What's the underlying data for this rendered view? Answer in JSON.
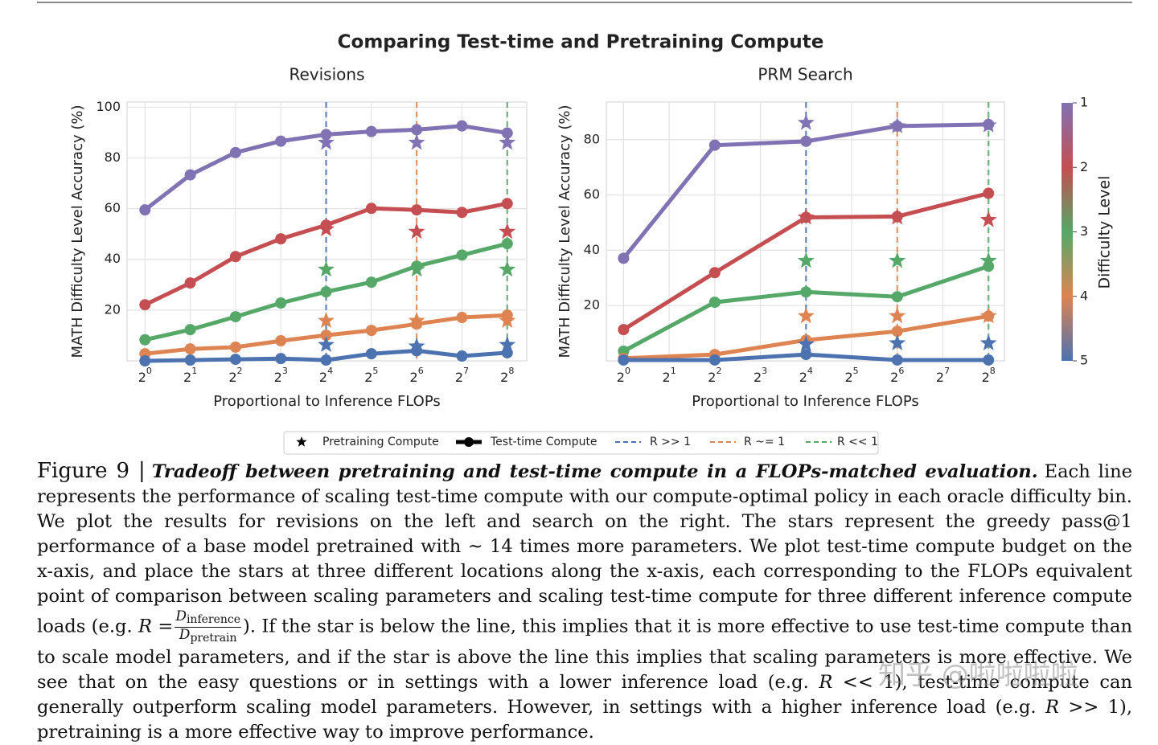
{
  "figure_title": "Comparing Test-time and Pretraining Compute",
  "chart_data": [
    {
      "type": "line",
      "title": "Revisions",
      "xlabel": "Proportional to Inference FLOPs",
      "ylabel": "MATH Difficulty Level Accuracy (%)",
      "xscale": "log2",
      "xlim": [
        0.76,
        345
      ],
      "ylim": [
        0,
        102
      ],
      "grid": true,
      "xticks": [
        {
          "value": 1,
          "label": "2^0"
        },
        {
          "value": 2,
          "label": "2^1"
        },
        {
          "value": 4,
          "label": "2^2"
        },
        {
          "value": 8,
          "label": "2^3"
        },
        {
          "value": 16,
          "label": "2^4"
        },
        {
          "value": 32,
          "label": "2^5"
        },
        {
          "value": 64,
          "label": "2^6"
        },
        {
          "value": 128,
          "label": "2^7"
        },
        {
          "value": 256,
          "label": "2^8"
        }
      ],
      "yticks": [
        20,
        40,
        60,
        80,
        100
      ],
      "x": [
        1,
        2,
        4,
        8,
        16,
        32,
        64,
        128,
        256
      ],
      "star_x": [
        16,
        64,
        256
      ],
      "vlines": [
        {
          "x": 16,
          "color": "#4c72b0"
        },
        {
          "x": 64,
          "color": "#dd8452"
        },
        {
          "x": 256,
          "color": "#55a868"
        }
      ],
      "series": [
        {
          "color": "#8172b3",
          "values": [
            59.5,
            73.3,
            82.1,
            86.6,
            89.2,
            90.4,
            91.1,
            92.6,
            89.8
          ],
          "stars": [
            86,
            86,
            86
          ]
        },
        {
          "color": "#c44e52",
          "values": [
            22.1,
            30.7,
            41.1,
            48.1,
            53.5,
            60.1,
            59.5,
            58.5,
            62.0
          ],
          "stars": [
            51.9,
            50.9,
            50.9
          ]
        },
        {
          "color": "#55a868",
          "values": [
            8.3,
            12.3,
            17.4,
            22.8,
            27.2,
            31.0,
            37.3,
            41.7,
            46.2
          ],
          "stars": [
            36,
            36,
            36
          ]
        },
        {
          "color": "#dd8452",
          "values": [
            2.8,
            4.7,
            5.4,
            7.9,
            10.1,
            12.0,
            14.5,
            17.1,
            18.0
          ],
          "stars": [
            15.8,
            15.8,
            15.8
          ]
        },
        {
          "color": "#4c72b0",
          "values": [
            0,
            0.3,
            0.6,
            0.9,
            0.3,
            2.8,
            4.0,
            1.9,
            3.2
          ],
          "stars": [
            6.3,
            5.7,
            6.3
          ]
        }
      ]
    },
    {
      "type": "line",
      "title": "PRM Search",
      "xlabel": "Proportional to Inference FLOPs",
      "ylabel": "MATH Difficulty Level Accuracy (%)",
      "xscale": "log2",
      "xlim": [
        0.77,
        326
      ],
      "ylim": [
        0,
        93.6
      ],
      "grid": true,
      "xticks": [
        {
          "value": 1,
          "label": "2^0"
        },
        {
          "value": 2,
          "label": "2^1"
        },
        {
          "value": 4,
          "label": "2^2"
        },
        {
          "value": 8,
          "label": "2^3"
        },
        {
          "value": 16,
          "label": "2^4"
        },
        {
          "value": 32,
          "label": "2^5"
        },
        {
          "value": 64,
          "label": "2^6"
        },
        {
          "value": 128,
          "label": "2^7"
        },
        {
          "value": 256,
          "label": "2^8"
        }
      ],
      "yticks": [
        20,
        40,
        60,
        80
      ],
      "x": [
        1,
        4,
        16,
        64,
        256
      ],
      "star_x": [
        16,
        64,
        256
      ],
      "vlines": [
        {
          "x": 16,
          "color": "#4c72b0"
        },
        {
          "x": 64,
          "color": "#dd8452"
        },
        {
          "x": 256,
          "color": "#55a868"
        }
      ],
      "series": [
        {
          "color": "#8172b3",
          "values": [
            37.1,
            78.0,
            79.4,
            84.9,
            85.5
          ],
          "stars": [
            86.1,
            84.9,
            85.2
          ]
        },
        {
          "color": "#c44e52",
          "values": [
            11.3,
            31.9,
            51.9,
            52.2,
            60.6
          ],
          "stars": [
            51.9,
            51.9,
            51.0
          ]
        },
        {
          "color": "#55a868",
          "values": [
            3.5,
            21.2,
            24.9,
            23.2,
            34.2
          ],
          "stars": [
            36.2,
            36.2,
            36.2
          ]
        },
        {
          "color": "#dd8452",
          "values": [
            0.9,
            2.3,
            7.5,
            10.7,
            16.2
          ],
          "stars": [
            16.2,
            16.2,
            16.2
          ]
        },
        {
          "color": "#4c72b0",
          "values": [
            0.3,
            0.3,
            2.3,
            0.3,
            0.3
          ],
          "stars": [
            6.0,
            6.4,
            6.4
          ]
        }
      ]
    }
  ],
  "colorbar": {
    "label": "Difficulty Level",
    "lim": [
      1,
      5
    ],
    "ticks": [
      1,
      2,
      3,
      4,
      5
    ],
    "colors": [
      "#8172b3",
      "#c44e52",
      "#55a868",
      "#dd8452",
      "#4c72b0"
    ]
  },
  "legend": [
    {
      "label": "Pretraining Compute",
      "marker": "star",
      "color": "#000000"
    },
    {
      "label": "Test-time Compute",
      "marker": "line-dot",
      "color": "#000000"
    },
    {
      "label": "R >> 1",
      "marker": "dash",
      "color": "#4c72b0"
    },
    {
      "label": "R ~= 1",
      "marker": "dash",
      "color": "#dd8452"
    },
    {
      "label": "R << 1",
      "marker": "dash",
      "color": "#55a868"
    }
  ],
  "caption": {
    "label": "Figure 9 |",
    "title": "Tradeoff between pretraining and test-time compute in a FLOPs-matched evaluation.",
    "segments": [
      {
        "text": "Each line represents the performance of scaling test-time compute with our compute-optimal policy in each oracle difficulty bin. We plot the results for revisions on the left and search on the right. The stars represent the greedy pass@1 performance of a base model pretrained with ~ 14 times more parameters. We plot test-time compute budget on the x-axis, and place the stars at three different locations along the x-axis, each corresponding to the FLOPs equivalent point of comparison between scaling parameters and scaling test-time compute for three different inference compute loads (e.g.",
        "italic": false
      },
      {
        "text": "R",
        "italic": true
      },
      {
        "text": "=",
        "italic": false
      },
      {
        "num": "D",
        "num_sub": "inference",
        "den": "D",
        "den_sub": "pretrain"
      },
      {
        "text": "). If the star is below the line, this implies that it is more effective to use test-time compute than to scale model parameters, and if the star is above the line this implies that scaling parameters is more effective. We see that on the easy questions or in settings with a lower inference load (e.g.",
        "italic": false
      },
      {
        "text": "R",
        "italic": true
      },
      {
        "text": "<< 1), test-time compute can generally outperform scaling model parameters. However, in settings with a higher inference load (e.g.",
        "italic": false
      },
      {
        "text": "R",
        "italic": true
      },
      {
        "text": ">> 1), pretraining is a more effective way to improve performance.",
        "italic": false
      }
    ]
  },
  "watermark": "知乎 @啦啦啦啦"
}
